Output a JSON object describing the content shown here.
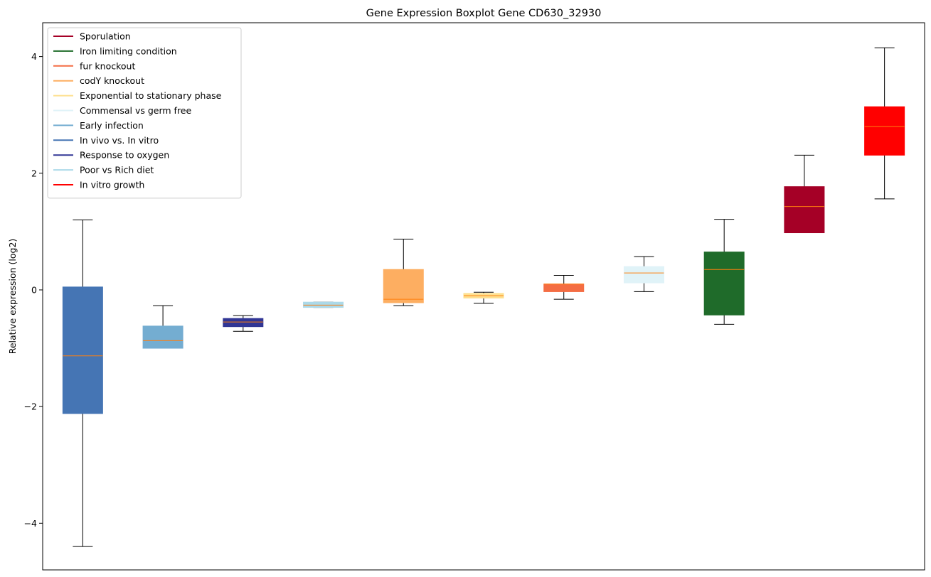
{
  "chart_data": {
    "type": "box",
    "title": "Gene Expression Boxplot Gene CD630_32930",
    "xlabel": "",
    "ylabel": "Relative expression (log2)",
    "ylim": [
      -4.8,
      4.58
    ],
    "yticks": [
      -4,
      -2,
      0,
      2,
      4
    ],
    "ytick_labels": [
      "−4",
      "−2",
      "0",
      "2",
      "4"
    ],
    "xticks_visible": false,
    "grid": false,
    "legend_position": "top-left",
    "median_color": "#ff7f0e",
    "legend": [
      {
        "label": "Sporulation",
        "color": "#a50026"
      },
      {
        "label": "Iron limiting condition",
        "color": "#1f6b2a"
      },
      {
        "label": "fur knockout",
        "color": "#f46d43"
      },
      {
        "label": "codY knockout",
        "color": "#fdae61"
      },
      {
        "label": "Exponential to stationary phase",
        "color": "#fee090"
      },
      {
        "label": "Commensal vs germ free",
        "color": "#e0f3f8"
      },
      {
        "label": "Early infection",
        "color": "#74add1"
      },
      {
        "label": "In vivo vs. In vitro",
        "color": "#4575b4"
      },
      {
        "label": "Response to oxygen",
        "color": "#313695"
      },
      {
        "label": "Poor vs Rich diet",
        "color": "#abd9e9"
      },
      {
        "label": "In vitro growth",
        "color": "#ff0000"
      }
    ],
    "boxes": [
      {
        "color": "#4575b4",
        "whisker_low": -4.4,
        "q1": -2.12,
        "median": -1.13,
        "q3": 0.05,
        "whisker_high": 1.2
      },
      {
        "color": "#74add1",
        "whisker_low": -1.0,
        "q1": -1.0,
        "median": -0.87,
        "q3": -0.62,
        "whisker_high": -0.27
      },
      {
        "color": "#313695",
        "whisker_low": -0.71,
        "q1": -0.63,
        "median": -0.55,
        "q3": -0.49,
        "whisker_high": -0.44
      },
      {
        "color": "#abd9e9",
        "whisker_low": -0.3,
        "q1": -0.3,
        "median": -0.26,
        "q3": -0.21,
        "whisker_high": -0.21
      },
      {
        "color": "#fdae61",
        "whisker_low": -0.27,
        "q1": -0.22,
        "median": -0.16,
        "q3": 0.35,
        "whisker_high": 0.87
      },
      {
        "color": "#fee090",
        "whisker_low": -0.23,
        "q1": -0.14,
        "median": -0.1,
        "q3": -0.06,
        "whisker_high": -0.04
      },
      {
        "color": "#f46d43",
        "whisker_low": -0.16,
        "q1": -0.03,
        "median": 0.1,
        "q3": 0.1,
        "whisker_high": 0.25
      },
      {
        "color": "#e0f3f8",
        "whisker_low": -0.03,
        "q1": 0.12,
        "median": 0.29,
        "q3": 0.4,
        "whisker_high": 0.57
      },
      {
        "color": "#1f6b2a",
        "whisker_low": -0.59,
        "q1": -0.43,
        "median": 0.35,
        "q3": 0.65,
        "whisker_high": 1.21
      },
      {
        "color": "#a50026",
        "whisker_low": 0.98,
        "q1": 0.98,
        "median": 1.43,
        "q3": 1.77,
        "whisker_high": 2.31
      },
      {
        "color": "#ff0000",
        "whisker_low": 1.56,
        "q1": 2.31,
        "median": 2.8,
        "q3": 3.14,
        "whisker_high": 4.15
      }
    ]
  }
}
